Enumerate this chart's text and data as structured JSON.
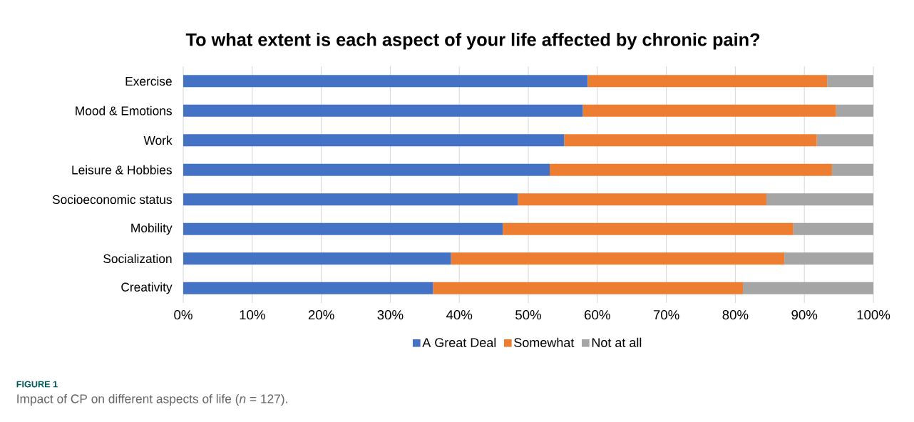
{
  "chart_data": {
    "type": "bar",
    "orientation": "horizontal",
    "stacked": true,
    "title": "To what extent is each aspect of your life affected by chronic pain?",
    "categories": [
      "Exercise",
      "Mood & Emotions",
      "Work",
      "Leisure & Hobbies",
      "Socioeconomic status",
      "Mobility",
      "Socialization",
      "Creativity"
    ],
    "series": [
      {
        "name": "A Great Deal",
        "color": "#4472c4",
        "values": [
          58.6,
          57.9,
          55.2,
          53.1,
          48.5,
          46.3,
          38.8,
          36.2
        ]
      },
      {
        "name": "Somewhat",
        "color": "#ed7d31",
        "values": [
          34.7,
          36.7,
          36.6,
          40.9,
          36.0,
          42.1,
          48.3,
          44.9
        ]
      },
      {
        "name": "Not at all",
        "color": "#a5a5a5",
        "values": [
          6.7,
          5.4,
          8.2,
          6.0,
          15.5,
          11.6,
          12.9,
          18.9
        ]
      }
    ],
    "xlim": [
      0,
      100
    ],
    "xticks": [
      {
        "value": 0,
        "label": "0%"
      },
      {
        "value": 10,
        "label": "10%"
      },
      {
        "value": 20,
        "label": "20%"
      },
      {
        "value": 30,
        "label": "30%"
      },
      {
        "value": 40,
        "label": "40%"
      },
      {
        "value": 50,
        "label": "50%"
      },
      {
        "value": 60,
        "label": "60%"
      },
      {
        "value": 70,
        "label": "70%"
      },
      {
        "value": 80,
        "label": "80%"
      },
      {
        "value": 90,
        "label": "90%"
      },
      {
        "value": 100,
        "label": "100%"
      }
    ],
    "grid": "x",
    "legend": "bottom",
    "annotations": [
      "FIGURE 1",
      "Impact of CP on different aspects of life (*n* = 127)."
    ]
  }
}
